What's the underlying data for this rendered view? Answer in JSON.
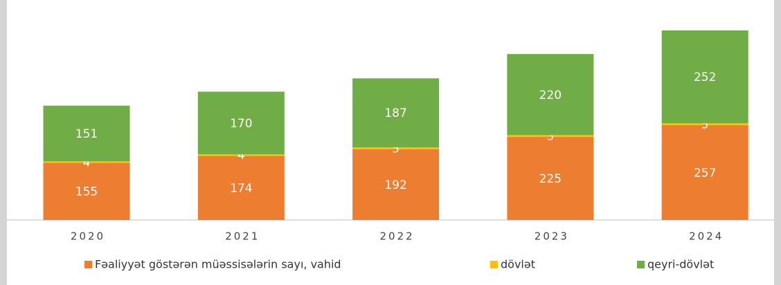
{
  "chart_data": {
    "type": "stacked-bar",
    "categories": [
      "2020",
      "2021",
      "2022",
      "2023",
      "2024"
    ],
    "series": [
      {
        "name": "Fəaliyyət göstərən müəssisələrin sayı, vahid",
        "color": "#ed7d31",
        "values": [
          155,
          174,
          192,
          225,
          257
        ]
      },
      {
        "name": "dövlət",
        "color": "#ffc000",
        "values": [
          4,
          4,
          5,
          5,
          5
        ]
      },
      {
        "name": "qeyri-dövlət",
        "color": "#70ad47",
        "values": [
          151,
          170,
          187,
          220,
          252
        ]
      }
    ],
    "legend": "bottom"
  }
}
